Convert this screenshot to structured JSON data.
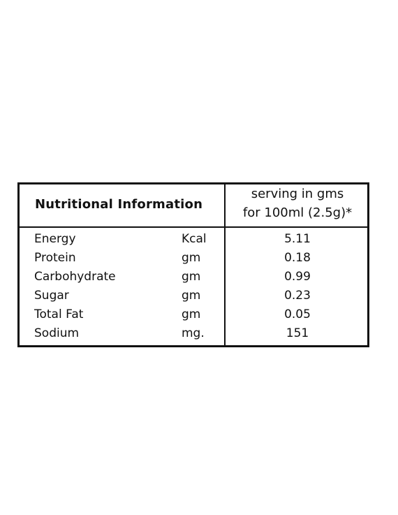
{
  "table": {
    "title": "Nutritional Information",
    "serving_line1": "serving in gms",
    "serving_line2": "for 100ml (2.5g)*",
    "rows": [
      {
        "name": "Energy",
        "unit": "Kcal",
        "value": "5.11"
      },
      {
        "name": "Protein",
        "unit": "gm",
        "value": "0.18"
      },
      {
        "name": "Carbohydrate",
        "unit": "gm",
        "value": "0.99"
      },
      {
        "name": "Sugar",
        "unit": "gm",
        "value": "0.23"
      },
      {
        "name": "Total Fat",
        "unit": "gm",
        "value": "0.05"
      },
      {
        "name": "Sodium",
        "unit": "mg.",
        "value": "151"
      }
    ]
  }
}
